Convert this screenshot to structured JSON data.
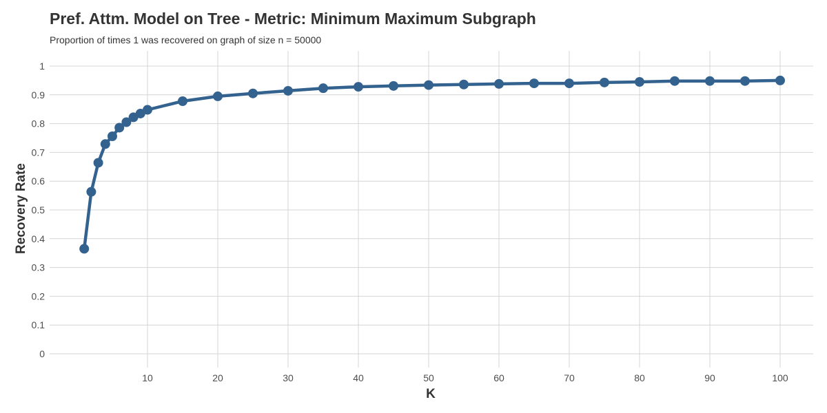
{
  "chart_data": {
    "type": "line",
    "title": "Pref. Attm. Model on Tree - Metric: Minimum Maximum Subgraph",
    "subtitle": "Proportion of times 1 was recovered on graph of size n = 50000",
    "xlabel": "K",
    "ylabel": "Recovery Rate",
    "xlim": [
      1,
      100
    ],
    "ylim": [
      0,
      1
    ],
    "x_ticks": [
      10,
      20,
      30,
      40,
      50,
      60,
      70,
      80,
      90,
      100
    ],
    "y_ticks": [
      0,
      0.1,
      0.2,
      0.3,
      0.4,
      0.5,
      0.6,
      0.7,
      0.8,
      0.9,
      1
    ],
    "y_tick_labels": [
      "0",
      "0.1",
      "0.2",
      "0.3",
      "0.4",
      "0.5",
      "0.6",
      "0.7",
      "0.8",
      "0.9",
      "1"
    ],
    "grid": true,
    "color": "#34628f",
    "x": [
      1,
      2,
      3,
      4,
      5,
      6,
      7,
      8,
      9,
      10,
      15,
      20,
      25,
      30,
      35,
      40,
      45,
      50,
      55,
      60,
      65,
      70,
      75,
      80,
      85,
      90,
      95,
      100
    ],
    "y": [
      0.365,
      0.563,
      0.664,
      0.729,
      0.756,
      0.786,
      0.805,
      0.822,
      0.835,
      0.848,
      0.878,
      0.895,
      0.905,
      0.914,
      0.923,
      0.928,
      0.931,
      0.934,
      0.936,
      0.938,
      0.94,
      0.94,
      0.943,
      0.945,
      0.948,
      0.948,
      0.948,
      0.95
    ]
  }
}
